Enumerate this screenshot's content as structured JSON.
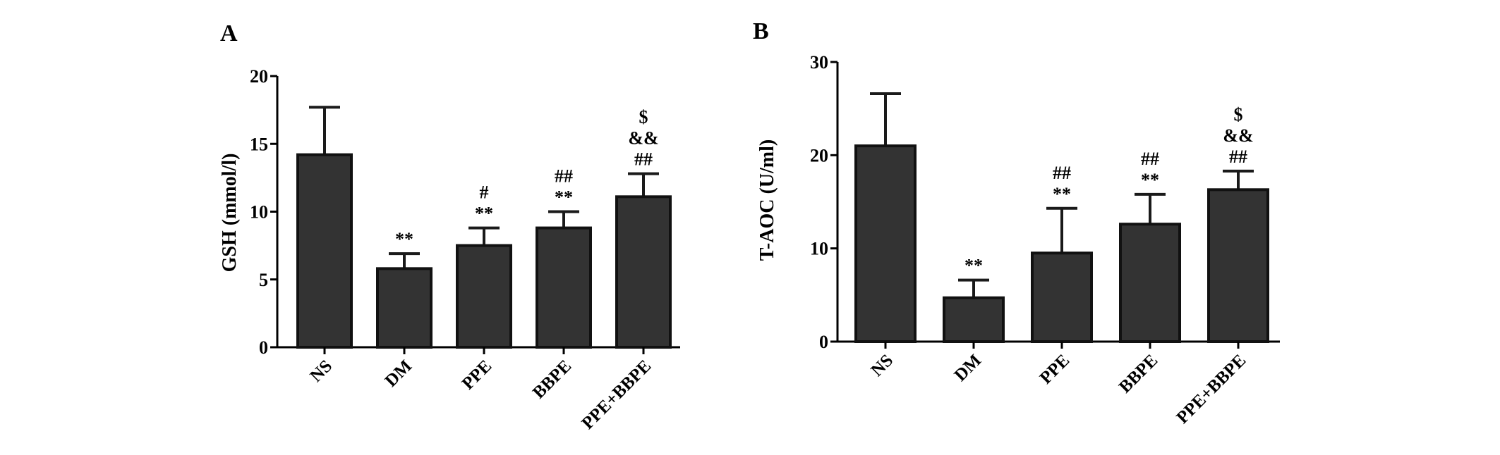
{
  "chart_data": [
    {
      "type": "bar",
      "panel_label": "A",
      "categories": [
        "NS",
        "DM",
        "PPE",
        "BBPE",
        "PPE+BBPE"
      ],
      "values": [
        14.2,
        5.8,
        7.5,
        8.8,
        11.1
      ],
      "errors": [
        3.5,
        1.1,
        1.3,
        1.2,
        1.7
      ],
      "annotations": [
        [],
        [
          "**"
        ],
        [
          "#",
          "**"
        ],
        [
          "##",
          "**"
        ],
        [
          "$",
          "&&",
          "##"
        ]
      ],
      "ylabel": "GSH (mmol/l)",
      "xlabel": "",
      "ylim": [
        0,
        20
      ],
      "yticks": [
        "0",
        "5",
        "10",
        "15",
        "20"
      ],
      "grid": false,
      "bar_color": "#333333"
    },
    {
      "type": "bar",
      "panel_label": "B",
      "categories": [
        "NS",
        "DM",
        "PPE",
        "BBPE",
        "PPE+BBPE"
      ],
      "values": [
        21.0,
        4.7,
        9.5,
        12.6,
        16.3
      ],
      "errors": [
        5.6,
        1.9,
        4.8,
        3.2,
        2.0
      ],
      "annotations": [
        [],
        [
          "**"
        ],
        [
          "##",
          "**"
        ],
        [
          "##",
          "**"
        ],
        [
          "$",
          "&&",
          "##"
        ]
      ],
      "ylabel": "T-AOC (U/ml)",
      "xlabel": "",
      "ylim": [
        0,
        30
      ],
      "yticks": [
        "0",
        "10",
        "20",
        "30"
      ],
      "grid": false,
      "bar_color": "#333333"
    }
  ]
}
